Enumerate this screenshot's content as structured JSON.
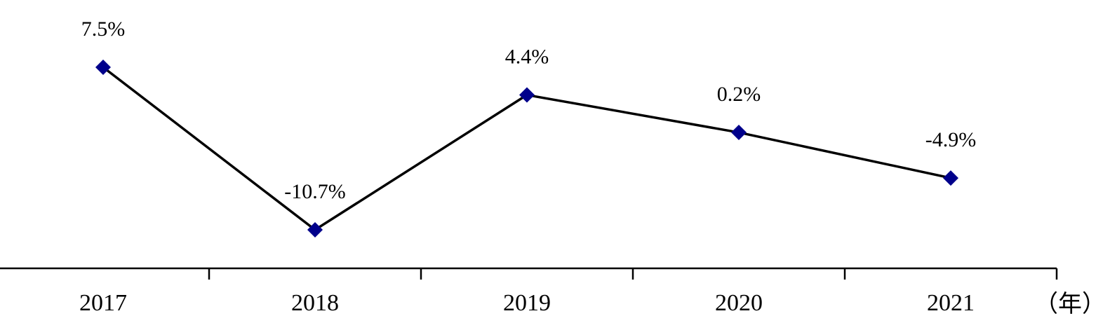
{
  "chart_data": {
    "type": "line",
    "x_label": "（年）",
    "categories": [
      "2017",
      "2018",
      "2019",
      "2020",
      "2021"
    ],
    "series": [
      {
        "values": [
          7.5,
          -10.7,
          4.4,
          0.2,
          -4.9
        ],
        "value_labels": [
          "7.5%",
          "-10.7%",
          "4.4%",
          "0.2%",
          "-4.9%"
        ],
        "color": "#00008b",
        "line_color": "#000000"
      }
    ]
  }
}
